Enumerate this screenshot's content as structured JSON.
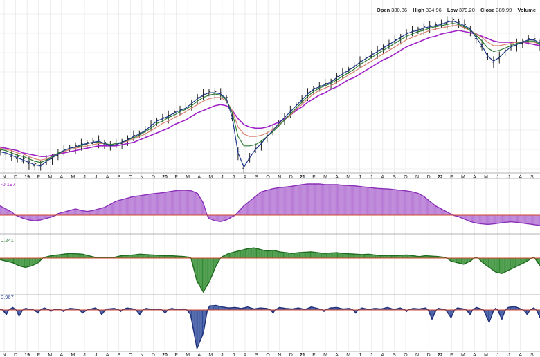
{
  "header": {
    "open_label": "Open",
    "open": "380.36",
    "high_label": "High",
    "high": "394.96",
    "low_label": "Low",
    "low": "379.20",
    "close_label": "Close",
    "close": "389.99",
    "volume_label": "Volume"
  },
  "panels": {
    "ppo1_value": "-0.197",
    "ppo2_value": "0.241",
    "ppo3_value": "0.967"
  },
  "colors": {
    "price_bars": "#222222",
    "ma_fast": "#1f3a8a",
    "ma_green": "#2e7d32",
    "ma_salmon": "#d9826f",
    "ma_purple": "#a020c8",
    "panel1_fill": "#b77ad6",
    "panel2_fill": "#2e8b2e",
    "panel3_fill": "#2e4a9a",
    "zero_line": "#d0452d",
    "grid": "#e2e2e2"
  },
  "chart_data": {
    "type": "line",
    "title": "",
    "x_ticks": [
      "N",
      "D",
      "19",
      "F",
      "M",
      "A",
      "M",
      "J",
      "J",
      "A",
      "S",
      "O",
      "N",
      "D",
      "20",
      "F",
      "M",
      "A",
      "M",
      "J",
      "J",
      "A",
      "S",
      "O",
      "N",
      "D",
      "21",
      "F",
      "M",
      "A",
      "M",
      "J",
      "J",
      "A",
      "S",
      "O",
      "N",
      "D",
      "22",
      "F",
      "M",
      "A",
      "M",
      "J",
      "J",
      "A",
      "S"
    ],
    "x_tick_bold": [
      "19",
      "20",
      "21",
      "22"
    ],
    "price": {
      "ylim": [
        265,
        400
      ],
      "series": [
        {
          "values": [
            283,
            282,
            280,
            278,
            276,
            274,
            272,
            271,
            275,
            278,
            281,
            284,
            286,
            287,
            289,
            290,
            291,
            292,
            290,
            288,
            289,
            291,
            293,
            296,
            298,
            301,
            305,
            309,
            311,
            313,
            316,
            318,
            320,
            324,
            328,
            331,
            333,
            333,
            332,
            328,
            312,
            282,
            270,
            278,
            285,
            290,
            296,
            301,
            307,
            312,
            317,
            322,
            327,
            332,
            336,
            338,
            340,
            342,
            346,
            349,
            352,
            355,
            359,
            362,
            365,
            368,
            371,
            374,
            377,
            380,
            383,
            385,
            386,
            388,
            389,
            390,
            391,
            393,
            394,
            392,
            390,
            387,
            380,
            373,
            364,
            360,
            363,
            368,
            372,
            374,
            376,
            378,
            378,
            375
          ]
        },
        {
          "values": [
            285,
            284,
            282,
            280,
            279,
            277,
            275,
            274,
            276,
            279,
            282,
            284,
            286,
            287,
            288,
            290,
            291,
            291,
            290,
            289,
            290,
            291,
            293,
            295,
            297,
            300,
            303,
            307,
            309,
            312,
            314,
            317,
            319,
            322,
            326,
            329,
            331,
            332,
            331,
            327,
            316,
            296,
            288,
            288,
            289,
            292,
            296,
            300,
            305,
            310,
            315,
            320,
            325,
            330,
            334,
            337,
            339,
            341,
            344,
            347,
            350,
            353,
            357,
            360,
            363,
            366,
            369,
            372,
            375,
            378,
            381,
            383,
            385,
            386,
            388,
            389,
            390,
            391,
            392,
            391,
            389,
            386,
            382,
            377,
            371,
            368,
            369,
            371,
            373,
            375,
            376,
            377,
            377,
            374
          ]
        },
        {
          "values": [
            286,
            285,
            284,
            282,
            281,
            279,
            277,
            276,
            277,
            279,
            281,
            283,
            285,
            286,
            287,
            288,
            289,
            290,
            290,
            289,
            290,
            291,
            292,
            294,
            296,
            298,
            301,
            304,
            307,
            309,
            312,
            314,
            317,
            320,
            323,
            326,
            328,
            329,
            329,
            326,
            318,
            304,
            298,
            296,
            296,
            297,
            299,
            302,
            306,
            310,
            314,
            319,
            323,
            328,
            332,
            335,
            337,
            339,
            342,
            345,
            348,
            351,
            354,
            357,
            360,
            363,
            366,
            369,
            372,
            375,
            378,
            380,
            382,
            384,
            386,
            387,
            388,
            389,
            390,
            390,
            388,
            386,
            383,
            380,
            376,
            373,
            373,
            374,
            375,
            376,
            376,
            376,
            376,
            374
          ]
        },
        {
          "values": [
            287,
            286,
            285,
            284,
            282,
            281,
            280,
            279,
            279,
            280,
            281,
            282,
            283,
            284,
            285,
            286,
            287,
            288,
            288,
            288,
            288,
            289,
            290,
            291,
            293,
            295,
            297,
            299,
            301,
            303,
            306,
            308,
            310,
            313,
            316,
            318,
            320,
            322,
            323,
            322,
            318,
            311,
            306,
            304,
            303,
            303,
            304,
            306,
            308,
            311,
            314,
            318,
            321,
            325,
            328,
            331,
            333,
            336,
            338,
            341,
            344,
            346,
            349,
            352,
            355,
            358,
            361,
            363,
            366,
            369,
            372,
            374,
            376,
            378,
            380,
            381,
            383,
            384,
            385,
            386,
            385,
            384,
            383,
            381,
            379,
            377,
            376,
            376,
            376,
            376,
            376,
            375,
            374,
            373
          ]
        }
      ]
    },
    "panel1": {
      "name": "-0.197",
      "values": [
        0.3,
        0.2,
        0.1,
        -0.05,
        -0.2,
        -0.3,
        -0.35,
        -0.3,
        -0.2,
        -0.1,
        0.05,
        0.1,
        0.15,
        0.2,
        0.15,
        0.12,
        0.15,
        0.2,
        0.25,
        0.35,
        0.45,
        0.5,
        0.55,
        0.6,
        0.62,
        0.65,
        0.68,
        0.7,
        0.72,
        0.75,
        0.78,
        0.8,
        0.8,
        0.78,
        0.7,
        0.4,
        -0.2,
        -0.35,
        -0.4,
        -0.3,
        -0.1,
        0.1,
        0.3,
        0.45,
        0.6,
        0.75,
        0.8,
        0.85,
        0.88,
        0.9,
        0.92,
        0.95,
        0.98,
        1.0,
        1.0,
        1.0,
        0.98,
        0.98,
        0.98,
        0.96,
        0.95,
        0.94,
        0.92,
        0.9,
        0.88,
        0.86,
        0.85,
        0.84,
        0.82,
        0.8,
        0.78,
        0.75,
        0.7,
        0.6,
        0.45,
        0.3,
        0.2,
        0.1,
        0.0,
        -0.1,
        -0.25,
        -0.4,
        -0.5,
        -0.55,
        -0.58,
        -0.55,
        -0.5,
        -0.45,
        -0.42,
        -0.45,
        -0.5,
        -0.55,
        -0.6,
        -0.65
      ]
    },
    "panel2": {
      "name": "0.241",
      "values": [
        -0.1,
        -0.2,
        -0.3,
        -0.5,
        -0.6,
        -0.5,
        -0.3,
        0.1,
        0.3,
        0.4,
        0.5,
        0.6,
        0.55,
        0.5,
        0.3,
        0.1,
        0.05,
        0.05,
        0.1,
        0.3,
        0.35,
        0.4,
        0.5,
        0.45,
        0.4,
        0.35,
        0.3,
        0.3,
        0.25,
        0.2,
        0.1,
        -1.5,
        -2.2,
        -1.5,
        -0.5,
        0.2,
        0.6,
        0.8,
        1.0,
        1.2,
        1.3,
        1.1,
        0.9,
        1.0,
        0.8,
        0.7,
        0.6,
        0.7,
        0.75,
        0.8,
        0.7,
        0.6,
        0.65,
        0.7,
        0.6,
        0.55,
        0.5,
        0.45,
        0.5,
        0.4,
        0.3,
        0.35,
        0.3,
        0.35,
        0.4,
        0.3,
        0.2,
        0.3,
        0.25,
        0.2,
        0.1,
        -0.2,
        -0.3,
        -0.4,
        -0.2,
        0.1,
        -0.3,
        -0.6,
        -0.9,
        -1.0,
        -0.8,
        -0.6,
        -0.4,
        -0.2,
        0.1,
        -0.5
      ]
    },
    "panel3": {
      "name": "0.967",
      "values": [
        0.2,
        -0.3,
        0.5,
        -0.4,
        0.3,
        0.1,
        -0.2,
        0.4,
        -0.1,
        0.2,
        -0.1,
        0.3,
        0.2,
        -0.2,
        0.1,
        0.4,
        -0.3,
        0.2,
        0.3,
        -0.1,
        0.4,
        0.2,
        -0.3,
        0.3,
        0.1,
        0.2,
        -0.2,
        0.3,
        0.1,
        0.2,
        -0.3,
        -2.5,
        -1.5,
        0.8,
        0.9,
        0.6,
        0.4,
        0.5,
        0.3,
        0.6,
        0.2,
        0.4,
        0.3,
        -0.2,
        0.5,
        0.3,
        0.2,
        0.4,
        0.1,
        0.6,
        0.3,
        -0.1,
        0.4,
        0.5,
        0.2,
        0.3,
        -0.2,
        0.4,
        0.1,
        0.3,
        0.2,
        0.5,
        0.1,
        0.4,
        -0.1,
        0.3,
        0.2,
        0.4,
        -0.6,
        0.3,
        0.1,
        -0.5,
        0.4,
        0.2,
        -0.3,
        0.5,
        0.1,
        -0.8,
        0.3,
        -0.6,
        0.5,
        0.7,
        0.2,
        -0.3,
        0.4,
        -0.5
      ]
    }
  }
}
